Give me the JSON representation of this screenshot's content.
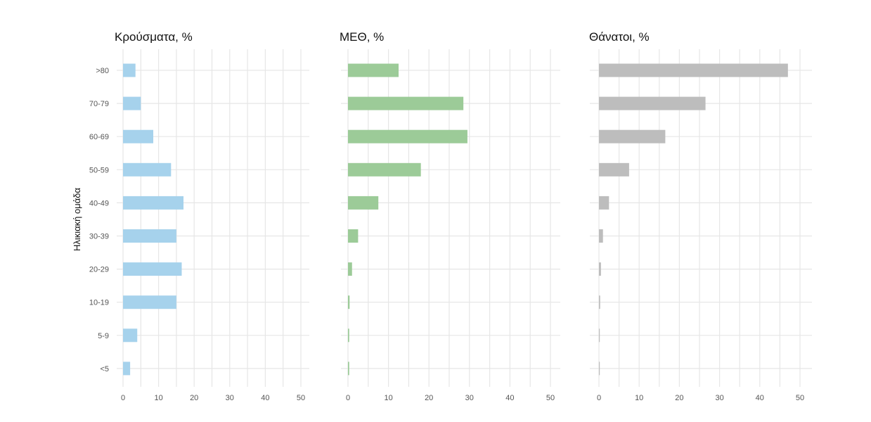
{
  "chart_data": {
    "type": "bar",
    "orientation": "horizontal",
    "ylabel": "Ηλικιακή ομάδα",
    "categories": [
      ">80",
      "70-79",
      "60-69",
      "50-59",
      "40-49",
      "30-39",
      "20-29",
      "10-19",
      "5-9",
      "<5"
    ],
    "xlim": [
      0,
      50
    ],
    "xticks": [
      "0",
      "10",
      "20",
      "30",
      "40",
      "50"
    ],
    "grid": true,
    "panels": [
      {
        "title": "Κρούσματα, %",
        "color": "#a6d2ec",
        "values": [
          3.5,
          5,
          8.5,
          13.5,
          17,
          15,
          16.5,
          15,
          4,
          2
        ]
      },
      {
        "title": "ΜΕΘ, %",
        "color": "#9ccb98",
        "values": [
          12.5,
          28.5,
          29.5,
          18,
          7.5,
          2.5,
          1,
          0.4,
          0.3,
          0.3
        ]
      },
      {
        "title": "Θάνατοι, %",
        "color": "#bdbdbd",
        "values": [
          47,
          26.5,
          16.5,
          7.5,
          2.5,
          1,
          0.5,
          0.3,
          0.1,
          0.1
        ]
      }
    ]
  }
}
